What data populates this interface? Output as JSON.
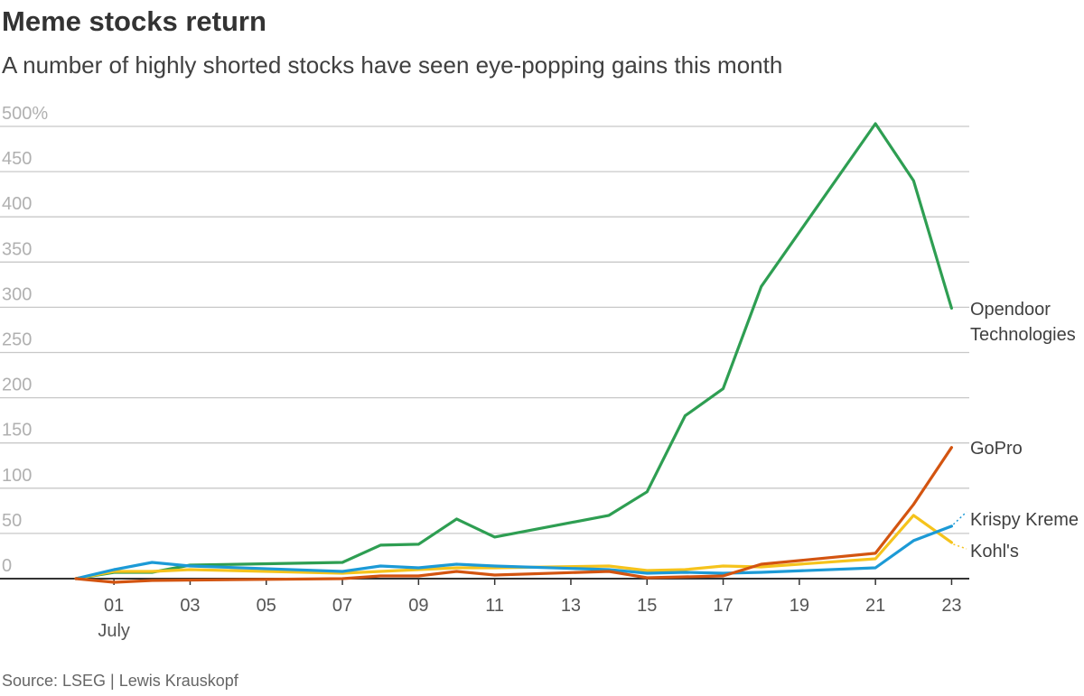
{
  "header": {
    "title": "Meme stocks return",
    "subtitle": "A number of highly shorted stocks have seen eye-popping gains this month"
  },
  "footer": {
    "source": "Source: LSEG | Lewis Krauskopf"
  },
  "chart_data": {
    "type": "line",
    "title": "Meme stocks return",
    "subtitle": "A number of highly shorted stocks have seen eye-popping gains this month",
    "xlabel": "",
    "ylabel": "",
    "y_unit": "%",
    "ylim": [
      0,
      500
    ],
    "y_ticks": [
      "500%",
      "450",
      "400",
      "350",
      "300",
      "250",
      "200",
      "150",
      "100",
      "50",
      "0"
    ],
    "y_tick_values": [
      500,
      450,
      400,
      350,
      300,
      250,
      200,
      150,
      100,
      50,
      0
    ],
    "x_ticks": [
      "01",
      "03",
      "05",
      "07",
      "09",
      "11",
      "13",
      "15",
      "17",
      "19",
      "21",
      "23"
    ],
    "x_tick_days": [
      1,
      3,
      5,
      7,
      9,
      11,
      13,
      15,
      17,
      19,
      21,
      23
    ],
    "x_sublabel": "July",
    "x_range": [
      0,
      23
    ],
    "grid": true,
    "legend": "labels at line ends, right",
    "series": [
      {
        "name": "Opendoor Technologies",
        "label_lines": [
          "Opendoor",
          "Technologies"
        ],
        "color": "#2e9e52",
        "x": [
          0,
          1,
          2,
          3,
          7,
          8,
          9,
          10,
          11,
          14,
          15,
          16,
          17,
          18,
          21,
          22,
          23
        ],
        "y": [
          0,
          7,
          7,
          15,
          18,
          37,
          38,
          66,
          46,
          70,
          96,
          180,
          210,
          323,
          503,
          440,
          299
        ]
      },
      {
        "name": "GoPro",
        "label_lines": [
          "GoPro"
        ],
        "color": "#d35410",
        "x": [
          0,
          1,
          2,
          7,
          8,
          9,
          10,
          11,
          14,
          15,
          16,
          17,
          18,
          21,
          22,
          23
        ],
        "y": [
          0,
          -4,
          -2,
          0,
          3,
          3,
          8,
          4,
          8,
          1,
          2,
          3,
          16,
          28,
          82,
          145
        ]
      },
      {
        "name": "Krispy Kreme",
        "label_lines": [
          "Krispy Kreme"
        ],
        "color": "#1c9ad6",
        "x": [
          0,
          1,
          2,
          3,
          7,
          8,
          9,
          10,
          11,
          14,
          15,
          16,
          17,
          18,
          21,
          22,
          23
        ],
        "y": [
          0,
          10,
          18,
          14,
          8,
          14,
          12,
          16,
          14,
          10,
          6,
          7,
          6,
          7,
          12,
          42,
          58
        ]
      },
      {
        "name": "Kohl's",
        "label_lines": [
          "Kohl's"
        ],
        "color": "#f5c31c",
        "x": [
          0,
          1,
          2,
          3,
          7,
          8,
          9,
          10,
          11,
          14,
          15,
          16,
          17,
          18,
          21,
          22,
          23
        ],
        "y": [
          0,
          8,
          8,
          10,
          6,
          8,
          10,
          12,
          12,
          14,
          9,
          10,
          14,
          13,
          22,
          70,
          40
        ]
      }
    ]
  }
}
